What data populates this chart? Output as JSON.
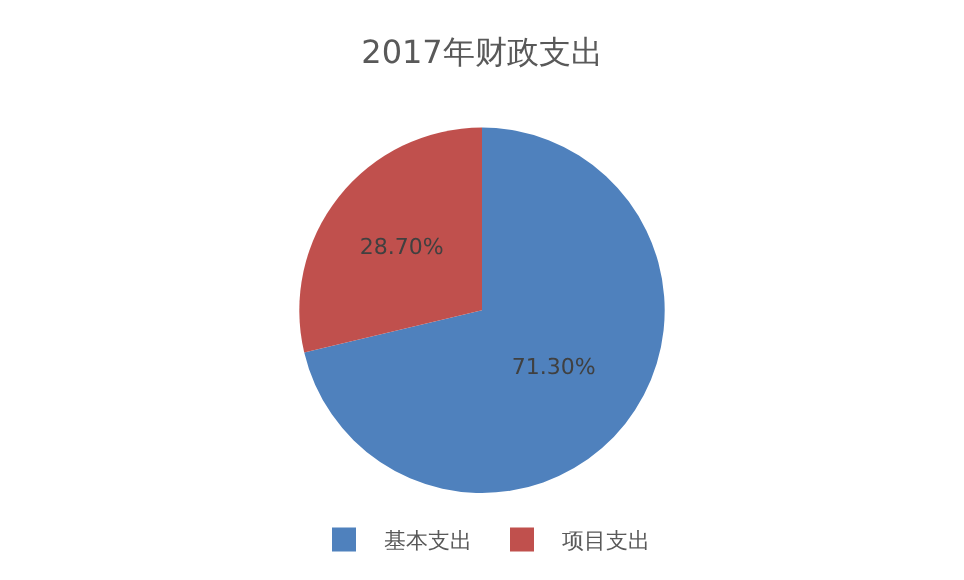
{
  "chart_data": {
    "type": "pie",
    "title": "2017年财政支出",
    "categories": [
      "基本支出",
      "项目支出"
    ],
    "values": [
      71.3,
      28.7
    ],
    "colors": [
      "#4f81bd",
      "#c0504d"
    ],
    "value_labels": [
      "71.30%",
      "28.70%"
    ],
    "legend": "bottom"
  }
}
